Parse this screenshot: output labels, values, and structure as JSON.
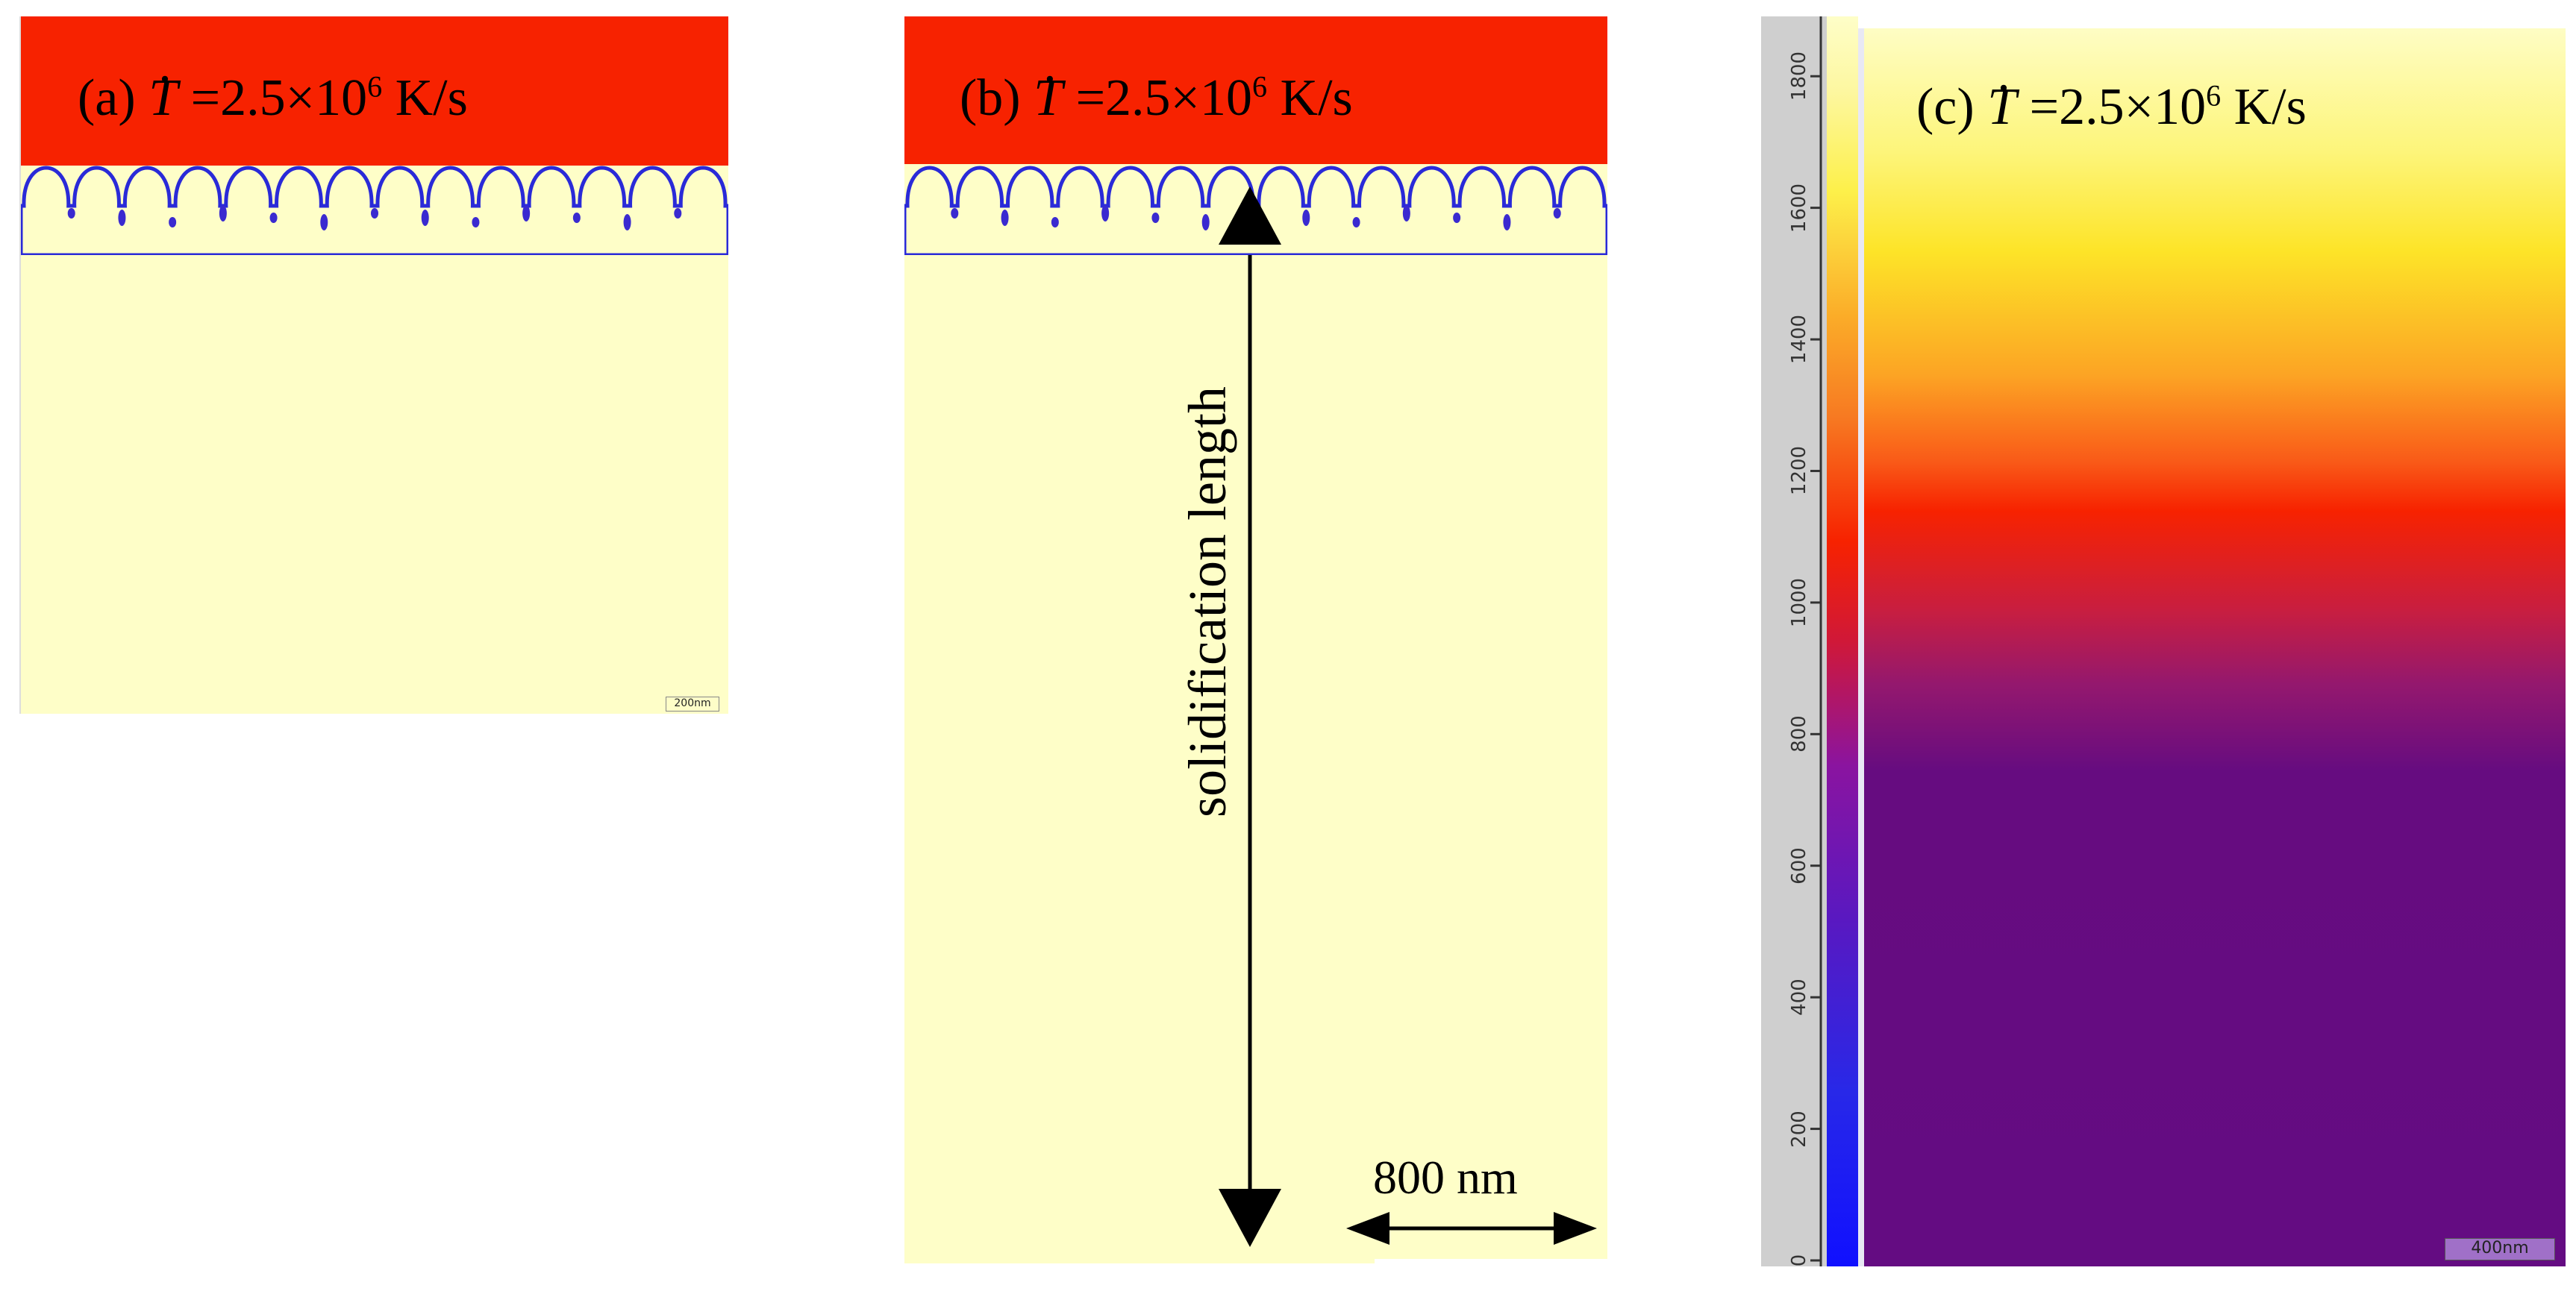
{
  "panel_a": {
    "label_prefix": "(a)",
    "symbol": "T",
    "rate_value": "=2.5×10",
    "rate_exp": "6",
    "rate_unit": "K/s",
    "scale_bar": "200nm"
  },
  "panel_b": {
    "label_prefix": "(b)",
    "symbol": "T",
    "rate_value": "=2.5×10",
    "rate_exp": "6",
    "rate_unit": "K/s",
    "arrow_label": "solidification length",
    "scale_label": "800 nm"
  },
  "panel_c": {
    "label_prefix": "(c)",
    "symbol": "T",
    "rate_value": "=2.5×10",
    "rate_exp": "6",
    "rate_unit": "K/s",
    "scale_bar": "400nm",
    "colorbar_ticks": [
      "0",
      "200",
      "400",
      "600",
      "800",
      "1000",
      "1200",
      "1400",
      "1600",
      "1800"
    ]
  },
  "colors": {
    "liquid": "#f72200",
    "solid": "#fefec8",
    "cell_edge": "#2a2ad8",
    "hot": "#fff9a8",
    "mid": "#f72200",
    "cold": "#640c82"
  }
}
